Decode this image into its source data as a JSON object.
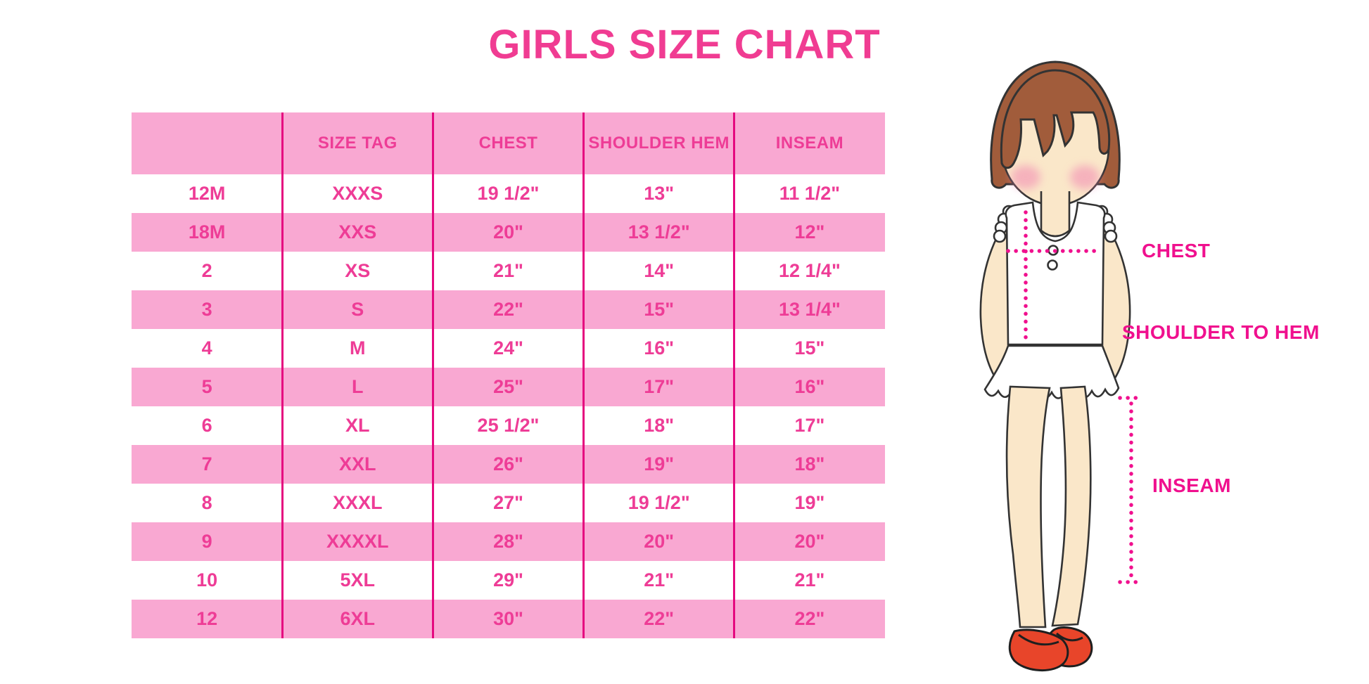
{
  "title": "GIRLS SIZE CHART",
  "colors": {
    "title_pink": "#F03C92",
    "table_pink": "#F9A8D2",
    "table_text_pink": "#EE3C96",
    "divider_magenta": "#E5097F",
    "label_magenta": "#F0108E",
    "hair_brown": "#A15C3B",
    "skin": "#FAE7C9",
    "blush": "#F287B2",
    "shoe_red": "#E8452A",
    "outline": "#333333"
  },
  "chart_data": {
    "type": "table",
    "title": "GIRLS SIZE CHART",
    "columns": [
      "",
      "SIZE TAG",
      "CHEST",
      "SHOULDER HEM",
      "INSEAM"
    ],
    "rows": [
      [
        "12M",
        "XXXS",
        "19 1/2\"",
        "13\"",
        "11 1/2\""
      ],
      [
        "18M",
        "XXS",
        "20\"",
        "13 1/2\"",
        "12\""
      ],
      [
        "2",
        "XS",
        "21\"",
        "14\"",
        "12 1/4\""
      ],
      [
        "3",
        "S",
        "22\"",
        "15\"",
        "13 1/4\""
      ],
      [
        "4",
        "M",
        "24\"",
        "16\"",
        "15\""
      ],
      [
        "5",
        "L",
        "25\"",
        "17\"",
        "16\""
      ],
      [
        "6",
        "XL",
        "25 1/2\"",
        "18\"",
        "17\""
      ],
      [
        "7",
        "XXL",
        "26\"",
        "19\"",
        "18\""
      ],
      [
        "8",
        "XXXL",
        "27\"",
        "19 1/2\"",
        "19\""
      ],
      [
        "9",
        "XXXXL",
        "28\"",
        "20\"",
        "20\""
      ],
      [
        "10",
        "5XL",
        "29\"",
        "21\"",
        "21\""
      ],
      [
        "12",
        "6XL",
        "30\"",
        "22\"",
        "22\""
      ]
    ],
    "row_stripe": "odd rows white, even rows pink",
    "legend_position": "none",
    "grid": "vertical magenta dividers only"
  },
  "figure": {
    "description": "cartoon girl with brown bob hair, white ruffled sleeveless top, white skirt, red shoes, dotted magenta measurement guides",
    "labels": {
      "chest": "CHEST",
      "shoulder_to_hem": "SHOULDER TO HEM",
      "inseam": "INSEAM"
    }
  }
}
